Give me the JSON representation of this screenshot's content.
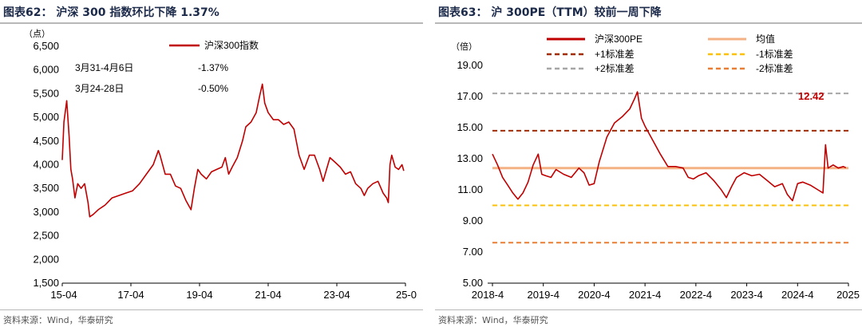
{
  "charts": {
    "left": {
      "title": "图表62：  沪深 300 指数环比下降 1.37%",
      "source": "资料来源：Wind，华泰研究",
      "chart_data": {
        "type": "line",
        "ylabel": "（点）",
        "ylim": [
          1500,
          6500
        ],
        "yticks": [
          "6,500",
          "6,000",
          "5,500",
          "5,000",
          "4,500",
          "4,000",
          "3,500",
          "3,000",
          "2,500",
          "2,000",
          "1,500"
        ],
        "ytick_values": [
          6500,
          6000,
          5500,
          5000,
          4500,
          4000,
          3500,
          3000,
          2500,
          2000,
          1500
        ],
        "xlim": [
          2015.25,
          2025.25
        ],
        "xticks": [
          "15-04",
          "17-04",
          "19-04",
          "21-04",
          "23-04",
          "25-0"
        ],
        "xtick_values": [
          2015.25,
          2017.25,
          2019.25,
          2021.25,
          2023.25,
          2025.25
        ],
        "legend": "top-right",
        "series": [
          {
            "name": "沪深300指数",
            "color": "#c00000",
            "x": [
              2015.25,
              2015.3,
              2015.38,
              2015.45,
              2015.5,
              2015.55,
              2015.62,
              2015.7,
              2015.8,
              2015.9,
              2016.0,
              2016.05,
              2016.15,
              2016.3,
              2016.5,
              2016.7,
              2016.9,
              2017.1,
              2017.3,
              2017.5,
              2017.7,
              2017.9,
              2018.05,
              2018.1,
              2018.25,
              2018.4,
              2018.55,
              2018.7,
              2018.85,
              2019.0,
              2019.1,
              2019.2,
              2019.3,
              2019.45,
              2019.6,
              2019.75,
              2019.9,
              2020.0,
              2020.1,
              2020.2,
              2020.35,
              2020.5,
              2020.6,
              2020.75,
              2020.9,
              2021.0,
              2021.08,
              2021.15,
              2021.25,
              2021.4,
              2021.55,
              2021.7,
              2021.85,
              2022.0,
              2022.15,
              2022.3,
              2022.45,
              2022.6,
              2022.75,
              2022.85,
              2022.95,
              2023.05,
              2023.2,
              2023.35,
              2023.5,
              2023.65,
              2023.8,
              2023.95,
              2024.05,
              2024.15,
              2024.3,
              2024.45,
              2024.6,
              2024.7,
              2024.75,
              2024.8,
              2024.85,
              2024.95,
              2025.05,
              2025.15,
              2025.2
            ],
            "y": [
              4100,
              4900,
              5350,
              4600,
              3900,
              3700,
              3300,
              3600,
              3500,
              3600,
              3200,
              2900,
              2950,
              3050,
              3150,
              3300,
              3350,
              3400,
              3450,
              3600,
              3800,
              4000,
              4300,
              4200,
              3800,
              3800,
              3550,
              3500,
              3250,
              3050,
              3500,
              3900,
              3800,
              3700,
              3850,
              3900,
              3950,
              4150,
              3800,
              3950,
              4150,
              4500,
              4800,
              4900,
              5100,
              5450,
              5700,
              5300,
              5100,
              4950,
              4950,
              4850,
              4900,
              4750,
              4200,
              3900,
              4200,
              4200,
              3900,
              3650,
              3900,
              4150,
              4050,
              3950,
              3800,
              3850,
              3600,
              3500,
              3350,
              3500,
              3600,
              3650,
              3400,
              3300,
              3200,
              4000,
              4200,
              3950,
              3900,
              4000,
              3870
            ]
          }
        ],
        "annotations": [
          {
            "label": "3月31-4月6日",
            "value": "-1.37%"
          },
          {
            "label": "3月24-28日",
            "value": "-0.50%"
          }
        ]
      }
    },
    "right": {
      "title": "图表63：  沪 300PE（TTM）较前一周下降",
      "source": "资料来源：Wind，华泰研究",
      "chart_data": {
        "type": "line",
        "ylabel": "（倍）",
        "ylim": [
          5,
          19
        ],
        "yticks": [
          "19.00",
          "17.00",
          "15.00",
          "13.00",
          "11.00",
          "9.00",
          "7.00",
          "5.00"
        ],
        "ytick_values": [
          19,
          17,
          15,
          13,
          11,
          9,
          7,
          5
        ],
        "xlim": [
          2018.25,
          2025.25
        ],
        "xticks": [
          "2018-4",
          "2019-4",
          "2020-4",
          "2021-4",
          "2022-4",
          "2023-4",
          "2024-4",
          "2025"
        ],
        "xtick_values": [
          2018.25,
          2019.25,
          2020.25,
          2021.25,
          2022.25,
          2023.25,
          2024.25,
          2025.25
        ],
        "legend": "top",
        "series": [
          {
            "name": "沪深300PE",
            "color": "#c00000",
            "x": [
              2018.25,
              2018.35,
              2018.45,
              2018.55,
              2018.65,
              2018.75,
              2018.85,
              2018.95,
              2019.05,
              2019.15,
              2019.22,
              2019.3,
              2019.4,
              2019.5,
              2019.65,
              2019.8,
              2019.95,
              2020.05,
              2020.15,
              2020.25,
              2020.35,
              2020.5,
              2020.65,
              2020.8,
              2020.95,
              2021.05,
              2021.1,
              2021.18,
              2021.25,
              2021.4,
              2021.55,
              2021.7,
              2021.85,
              2022.0,
              2022.1,
              2022.2,
              2022.3,
              2022.45,
              2022.6,
              2022.75,
              2022.85,
              2022.95,
              2023.05,
              2023.2,
              2023.35,
              2023.5,
              2023.65,
              2023.8,
              2023.95,
              2024.05,
              2024.15,
              2024.25,
              2024.35,
              2024.5,
              2024.65,
              2024.75,
              2024.8,
              2024.85,
              2024.95,
              2025.05,
              2025.15,
              2025.2
            ],
            "y": [
              13.3,
              12.6,
              11.8,
              11.3,
              10.8,
              10.4,
              10.8,
              11.5,
              12.6,
              13.3,
              12.0,
              11.9,
              11.8,
              12.3,
              12.0,
              11.8,
              12.4,
              12.1,
              11.3,
              11.4,
              12.8,
              14.4,
              15.3,
              15.7,
              16.2,
              16.9,
              17.3,
              15.6,
              15.1,
              14.2,
              13.3,
              12.5,
              12.5,
              12.4,
              11.8,
              11.7,
              11.9,
              12.1,
              11.6,
              11.0,
              10.5,
              11.2,
              11.8,
              12.1,
              11.9,
              12.0,
              11.6,
              11.2,
              11.4,
              10.7,
              10.3,
              11.4,
              11.5,
              11.3,
              11.0,
              10.8,
              13.9,
              12.4,
              12.6,
              12.4,
              12.5,
              12.42
            ]
          },
          {
            "name": "均值",
            "color": "#f4b183",
            "value": 12.4
          },
          {
            "name": "+1标准差",
            "color": "#a52a00",
            "value": 14.8
          },
          {
            "name": "+2标准差",
            "color": "#a6a6a6",
            "value": 17.2
          },
          {
            "name": "-1标准差",
            "color": "#ffc000",
            "value": 10.0
          },
          {
            "name": "-2标准差",
            "color": "#ed7d31",
            "value": 7.6
          }
        ],
        "annotations": [
          {
            "label": "12.42",
            "color": "#c00000"
          }
        ]
      }
    }
  }
}
